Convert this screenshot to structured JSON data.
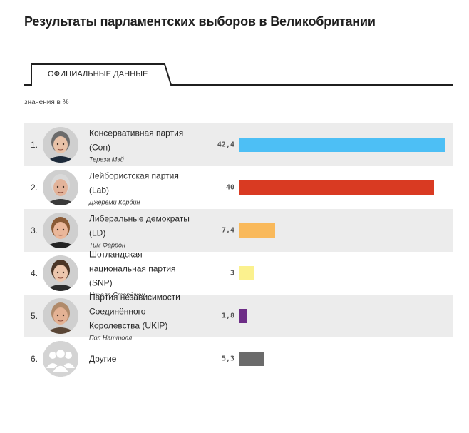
{
  "title": "Результаты парламентских выборов в Великобритании",
  "tab": {
    "label": "ОФИЦИАЛЬНЫЕ ДАННЫЕ"
  },
  "unit_note": "значения в %",
  "chart_data": {
    "type": "bar",
    "orientation": "horizontal",
    "title": "Результаты парламентских выборов в Великобритании",
    "unit": "%",
    "categories": [
      "Консервативная партия (Con)",
      "Лейбористская партия (Lab)",
      "Либеральные демократы (LD)",
      "Шотландская национальная партия (SNP)",
      "Партия независимости Соединённого Королевства (UKIP)",
      "Другие"
    ],
    "values": [
      42.4,
      40,
      7.4,
      3,
      1.8,
      5.3
    ],
    "xlim": [
      0,
      42.4
    ]
  },
  "rows": [
    {
      "rank": "1.",
      "party_lines": [
        "Консервативная партия",
        "(Con)"
      ],
      "leader": "Тереза Мэй",
      "value": 42.4,
      "value_label": "42,4",
      "color": "#4dbff5",
      "icon": "portrait-theresa-may",
      "skin": "#e8c2a8",
      "hair": "#6b6b6b",
      "jacket": "#1d2a3a"
    },
    {
      "rank": "2.",
      "party_lines": [
        "Лейбористская партия",
        "(Lab)"
      ],
      "leader": "Джереми Корбин",
      "value": 40,
      "value_label": "40",
      "color": "#d93a22",
      "icon": "portrait-jeremy-corbyn",
      "skin": "#e2b39a",
      "hair": "#d9d9d9",
      "jacket": "#3a3a3a"
    },
    {
      "rank": "3.",
      "party_lines": [
        "Либеральные демократы",
        "(LD)"
      ],
      "leader": "Тим Фаррон",
      "value": 7.4,
      "value_label": "7,4",
      "color": "#f9b95b",
      "icon": "portrait-tim-farron",
      "skin": "#eab79a",
      "hair": "#8a5a35",
      "jacket": "#222222"
    },
    {
      "rank": "4.",
      "party_lines": [
        "Шотландская",
        "национальная партия",
        "(SNP)"
      ],
      "leader": "Никола Стерджен",
      "value": 3,
      "value_label": "3",
      "color": "#fbf18e",
      "icon": "portrait-nicola-sturgeon",
      "skin": "#ecc6ad",
      "hair": "#4a3526",
      "jacket": "#2b2b2b"
    },
    {
      "rank": "5.",
      "party_lines": [
        "Партия независимости",
        "Соединённого",
        "Королевства (UKIP)"
      ],
      "leader": "Пол Наттолл",
      "value": 1.8,
      "value_label": "1,8",
      "color": "#6d2d86",
      "icon": "portrait-paul-nuttall",
      "skin": "#e4b294",
      "hair": "#b08a6a",
      "jacket": "#5a4636"
    },
    {
      "rank": "6.",
      "party_lines": [
        "Другие"
      ],
      "leader": "",
      "value": 5.3,
      "value_label": "5,3",
      "color": "#6b6b6b",
      "icon": "group-placeholder-icon"
    }
  ]
}
